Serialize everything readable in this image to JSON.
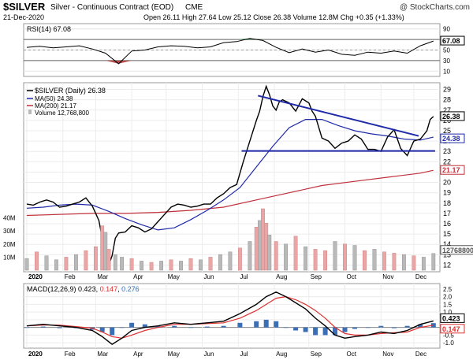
{
  "header": {
    "symbol": "$SILVER",
    "description": "Silver - Continuous Contract (EOD)",
    "exchange": "CME",
    "watermark": "@ StockCharts.com",
    "date": "21-Dec-2020",
    "stats": {
      "open_label": "Open",
      "open": "26.11",
      "high_label": "High",
      "high": "27.64",
      "low_label": "Low",
      "low": "25.12",
      "close_label": "Close",
      "close": "26.38",
      "volume_label": "Volume",
      "volume": "12.8M",
      "chg_label": "Chg",
      "chg": "+0.35 (+1.33%)"
    }
  },
  "colors": {
    "price": "#000000",
    "ma50": "#1f2aa8",
    "ma200": "#c0303a",
    "volume_up": "#b9b9b9",
    "volume_down": "#e9a6a6",
    "rsi_overbought": "#2e8b3e",
    "rsi_oversold": "#b33a3a",
    "trendline": "#1f2aa8",
    "macd_line": "#000000",
    "macd_signal": "#e03030",
    "macd_hist": "#3a6fb5"
  },
  "chart_data": [
    {
      "type": "line",
      "panel": "rsi",
      "legend": "RSI(14) 67.08",
      "ylim": [
        0,
        100
      ],
      "yticks": [
        10,
        30,
        50,
        70,
        90
      ],
      "levels": [
        30,
        70
      ],
      "last_value": 67.08,
      "last_label": "67.08",
      "x": [
        0,
        8,
        16,
        24,
        32,
        40,
        48,
        56,
        64,
        72,
        80,
        88,
        96,
        104,
        112,
        120,
        128,
        136,
        144,
        152,
        160,
        168,
        176,
        184,
        192,
        200,
        208,
        216,
        224,
        232,
        240,
        248
      ],
      "values": [
        55,
        57,
        54,
        56,
        58,
        52,
        44,
        24,
        48,
        50,
        56,
        58,
        57,
        54,
        56,
        64,
        66,
        72,
        68,
        55,
        45,
        52,
        46,
        50,
        42,
        40,
        46,
        44,
        48,
        44,
        58,
        67.08
      ]
    },
    {
      "type": "line",
      "panel": "price",
      "legend": [
        {
          "name": "$SILVER (Daily) 26.38"
        },
        {
          "name": "MA(50) 24.38"
        },
        {
          "name": "MA(200) 21.17"
        },
        {
          "name": "Volume 12,768,800"
        }
      ],
      "ylim": [
        11.5,
        29.5
      ],
      "yticks": [
        12,
        13,
        14,
        15,
        16,
        17,
        18,
        19,
        20,
        21,
        22,
        23,
        24,
        25,
        26,
        27,
        28,
        29
      ],
      "xlabels": [
        "2020",
        "Feb",
        "Mar",
        "Apr",
        "May",
        "Jun",
        "Jul",
        "Aug",
        "Sep",
        "Oct",
        "Nov",
        "Dec"
      ],
      "xlabel_positions": [
        0,
        22,
        42,
        64,
        85,
        107,
        129,
        151,
        172,
        194,
        216,
        236
      ],
      "x": [
        0,
        4,
        8,
        12,
        16,
        20,
        24,
        28,
        32,
        36,
        40,
        42,
        44,
        46,
        48,
        50,
        52,
        54,
        56,
        60,
        64,
        68,
        72,
        76,
        80,
        84,
        88,
        92,
        96,
        100,
        104,
        108,
        112,
        116,
        120,
        124,
        128,
        132,
        136,
        140,
        142,
        144,
        146,
        148,
        150,
        152,
        154,
        156,
        160,
        164,
        168,
        172,
        174,
        176,
        180,
        184,
        188,
        192,
        196,
        200,
        204,
        206,
        208,
        212,
        216,
        220,
        224,
        226,
        228,
        232,
        236,
        240,
        244,
        246,
        248
      ],
      "series": [
        {
          "name": "$SILVER (Daily)",
          "values": [
            17.9,
            17.8,
            18.1,
            18.3,
            18.1,
            17.6,
            17.7,
            17.9,
            18.1,
            18.5,
            17.7,
            17.0,
            16.3,
            14.6,
            13.2,
            12.0,
            12.9,
            14.6,
            15.1,
            15.2,
            15.8,
            15.6,
            15.2,
            15.5,
            16.2,
            16.9,
            17.6,
            17.9,
            17.8,
            17.6,
            17.7,
            17.9,
            17.9,
            18.5,
            18.9,
            19.5,
            19.8,
            22.0,
            24.0,
            26.0,
            26.9,
            28.3,
            29.3,
            28.5,
            27.4,
            27.0,
            27.8,
            28.0,
            27.7,
            26.9,
            28.1,
            27.7,
            26.9,
            26.4,
            24.3,
            24.0,
            23.3,
            23.8,
            24.0,
            24.6,
            24.2,
            23.7,
            23.2,
            23.2,
            23.0,
            24.4,
            25.1,
            24.2,
            23.3,
            22.6,
            24.0,
            24.2,
            25.0,
            26.1,
            26.38
          ]
        },
        {
          "name": "MA(50)",
          "x": [
            0,
            10,
            20,
            30,
            40,
            50,
            60,
            70,
            80,
            90,
            100,
            110,
            120,
            130,
            140,
            150,
            160,
            170,
            180,
            190,
            200,
            210,
            220,
            230,
            240,
            248
          ],
          "values": [
            17.5,
            17.6,
            17.8,
            17.9,
            17.8,
            17.2,
            16.5,
            15.9,
            15.4,
            15.6,
            16.4,
            17.3,
            18.3,
            19.5,
            21.5,
            23.5,
            25.3,
            26.1,
            26.1,
            25.5,
            25.0,
            24.7,
            24.5,
            24.2,
            24.1,
            24.38
          ]
        },
        {
          "name": "MA(200)",
          "x": [
            0,
            20,
            40,
            60,
            80,
            100,
            120,
            140,
            160,
            180,
            200,
            220,
            240,
            248
          ],
          "values": [
            16.8,
            16.9,
            17.0,
            17.0,
            17.1,
            17.3,
            17.6,
            18.3,
            19.0,
            19.7,
            20.1,
            20.5,
            20.9,
            21.17
          ]
        }
      ],
      "trendline_upper": {
        "x": [
          141,
          239
        ],
        "values": [
          28.4,
          24.5
        ]
      },
      "support_line": {
        "x": [
          131,
          249
        ],
        "values": [
          23.05,
          23.05
        ]
      },
      "last_labels": {
        "price": "26.38",
        "ma50": "24.38",
        "ma200": "21.17"
      }
    },
    {
      "type": "bar",
      "panel": "volume",
      "ylabel_ticks": [
        "40M",
        "30M",
        "20M",
        "10M"
      ],
      "ytick_values": [
        40,
        30,
        20,
        10
      ],
      "ylim": [
        0,
        50
      ],
      "last_label": "12768800",
      "x": [
        0,
        6,
        12,
        18,
        24,
        30,
        36,
        42,
        46,
        48,
        50,
        54,
        58,
        64,
        70,
        76,
        82,
        88,
        94,
        100,
        106,
        112,
        118,
        124,
        130,
        136,
        140,
        142,
        144,
        146,
        148,
        152,
        158,
        164,
        170,
        176,
        182,
        188,
        194,
        200,
        206,
        212,
        218,
        224,
        230,
        236,
        242,
        248
      ],
      "values": [
        9,
        14,
        11,
        8,
        10,
        12,
        15,
        18,
        34,
        29,
        16,
        12,
        10,
        9,
        7,
        6,
        7,
        8,
        7,
        9,
        8,
        10,
        12,
        14,
        17,
        22,
        33,
        38,
        47,
        36,
        27,
        22,
        20,
        26,
        18,
        16,
        15,
        22,
        20,
        19,
        15,
        16,
        14,
        13,
        12,
        11,
        10,
        12.8
      ],
      "up": [
        true,
        false,
        true,
        true,
        false,
        true,
        false,
        false,
        false,
        true,
        false,
        true,
        true,
        false,
        true,
        false,
        true,
        false,
        true,
        false,
        true,
        false,
        true,
        true,
        false,
        true,
        false,
        true,
        false,
        false,
        true,
        false,
        true,
        false,
        true,
        false,
        false,
        true,
        false,
        true,
        false,
        true,
        false,
        false,
        true,
        false,
        true,
        true
      ]
    },
    {
      "type": "line",
      "panel": "macd",
      "legend": [
        {
          "name": "MACD(12,26,9)",
          "value": "0.423"
        },
        {
          "name": "signal",
          "value": "0.147"
        },
        {
          "name": "histogram",
          "value": "0.276"
        }
      ],
      "ylim": [
        -1.25,
        2.75
      ],
      "yticks": [
        -1.0,
        -0.5,
        0.0,
        0.5,
        1.0,
        1.5,
        2.0,
        2.5
      ],
      "ytick_labels": [
        "-1.0",
        "-0.5",
        "0.0",
        "0.5",
        "1.0",
        "1.5",
        "2.0",
        "2.5"
      ],
      "xlabels": [
        "2020",
        "Feb",
        "Mar",
        "Apr",
        "May",
        "Jun",
        "Jul",
        "Aug",
        "Sep",
        "Oct",
        "Nov",
        "Dec"
      ],
      "x": [
        0,
        10,
        20,
        30,
        40,
        46,
        52,
        58,
        64,
        72,
        80,
        90,
        100,
        110,
        120,
        130,
        140,
        146,
        152,
        158,
        164,
        170,
        176,
        182,
        188,
        194,
        200,
        208,
        216,
        224,
        232,
        240,
        248
      ],
      "series": [
        {
          "name": "MACD",
          "values": [
            0.1,
            0.2,
            0.1,
            0.0,
            -0.2,
            -0.6,
            -1.1,
            -0.7,
            -0.2,
            0.0,
            0.1,
            0.3,
            0.2,
            0.3,
            0.4,
            0.9,
            1.5,
            2.0,
            2.3,
            2.0,
            1.6,
            1.2,
            0.6,
            0.1,
            -0.5,
            -0.7,
            -0.6,
            -0.5,
            -0.3,
            -0.4,
            -0.2,
            0.2,
            0.423
          ]
        },
        {
          "name": "Signal",
          "values": [
            0.1,
            0.15,
            0.15,
            0.05,
            -0.05,
            -0.3,
            -0.6,
            -0.7,
            -0.5,
            -0.2,
            0.0,
            0.2,
            0.2,
            0.25,
            0.3,
            0.6,
            1.1,
            1.5,
            1.9,
            2.0,
            1.8,
            1.5,
            1.1,
            0.6,
            0.0,
            -0.4,
            -0.5,
            -0.5,
            -0.4,
            -0.35,
            -0.3,
            0.0,
            0.147
          ]
        },
        {
          "name": "Histogram",
          "values": [
            0.0,
            0.05,
            -0.05,
            -0.05,
            -0.15,
            -0.3,
            -0.5,
            0.0,
            0.3,
            0.2,
            0.1,
            0.1,
            0.0,
            0.05,
            0.1,
            0.3,
            0.4,
            0.5,
            0.4,
            0.0,
            -0.2,
            -0.3,
            -0.5,
            -0.5,
            -0.5,
            -0.3,
            -0.1,
            0.0,
            0.1,
            -0.05,
            0.1,
            0.2,
            0.276
          ]
        }
      ],
      "last_labels": {
        "macd": "0.423",
        "signal": "0.147",
        "hist": "0.276"
      }
    }
  ]
}
